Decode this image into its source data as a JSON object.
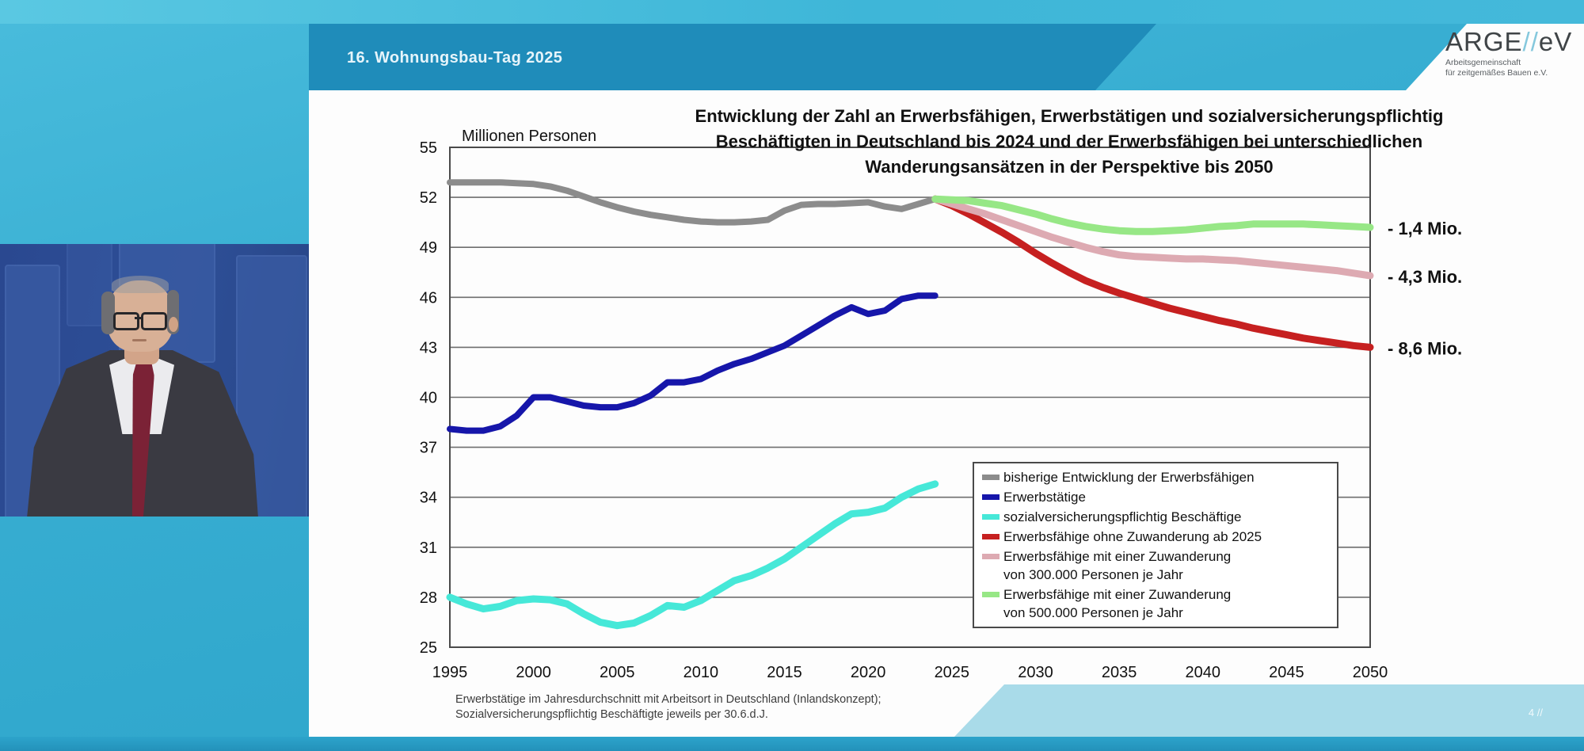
{
  "stream": {
    "page_number": "4 //"
  },
  "header": {
    "event_title": "16. Wohnungsbau-Tag 2025"
  },
  "logo": {
    "brand_left": "ARGE",
    "brand_slashes": "//",
    "brand_right": "eV",
    "subline1": "Arbeitsgemeinschaft",
    "subline2": "für zeitgemäßes Bauen e.V."
  },
  "chart_data": {
    "type": "line",
    "title_lines": [
      "Entwicklung der Zahl an Erwerbsfähigen, Erwerbstätigen und sozialversicherungspflichtig",
      "Beschäftigten in Deutschland bis 2024 und der Erwerbsfähigen bei unterschiedlichen",
      "Wanderungsansätzen in der Perspektive bis 2050"
    ],
    "unit_label": "Millionen Personen",
    "xlabel": "",
    "ylabel": "Millionen Personen",
    "x_axis": {
      "min": 1995,
      "max": 2050,
      "tick_step": 5
    },
    "y_axis": {
      "min": 25,
      "max": 55,
      "tick_step": 3
    },
    "grid": true,
    "legend_position": "inside-bottom-right",
    "series": [
      {
        "name": "bisherige Entwicklung der Erwerbsfähigen",
        "label_lines": [
          "bisherige Entwicklung der Erwerbsfähigen"
        ],
        "color": "#8c8c8c",
        "width": 8,
        "start_year": 1995,
        "values": [
          52.9,
          52.9,
          52.9,
          52.9,
          52.85,
          52.8,
          52.65,
          52.4,
          52.05,
          51.7,
          51.4,
          51.15,
          50.95,
          50.8,
          50.65,
          50.55,
          50.5,
          50.5,
          50.55,
          50.65,
          51.2,
          51.55,
          51.6,
          51.6,
          51.65,
          51.7,
          51.45,
          51.3,
          51.6,
          51.9
        ]
      },
      {
        "name": "Erwerbstätige",
        "label_lines": [
          "Erwerbstätige"
        ],
        "color": "#1616aa",
        "width": 8,
        "start_year": 1995,
        "values": [
          38.1,
          38.0,
          38.0,
          38.25,
          38.9,
          40.0,
          40.0,
          39.75,
          39.5,
          39.4,
          39.4,
          39.65,
          40.1,
          40.9,
          40.9,
          41.1,
          41.6,
          42.0,
          42.3,
          42.7,
          43.1,
          43.7,
          44.3,
          44.9,
          45.4,
          45.0,
          45.2,
          45.9,
          46.1,
          46.1
        ]
      },
      {
        "name": "sozialversicherungspflichtig Beschäftige",
        "label_lines": [
          "sozialversicherungspflichtig Beschäftige"
        ],
        "color": "#46e8d8",
        "width": 9,
        "start_year": 1995,
        "values": [
          28.0,
          27.6,
          27.3,
          27.45,
          27.8,
          27.9,
          27.85,
          27.6,
          27.0,
          26.5,
          26.3,
          26.45,
          26.9,
          27.5,
          27.4,
          27.8,
          28.4,
          29.0,
          29.3,
          29.75,
          30.3,
          31.0,
          31.7,
          32.4,
          33.0,
          33.1,
          33.35,
          34.0,
          34.5,
          34.8
        ]
      },
      {
        "name": "Erwerbsfähige ohne Zuwanderung ab 2025",
        "label_lines": [
          "Erwerbsfähige ohne Zuwanderung ab 2025"
        ],
        "color": "#c62020",
        "width": 9,
        "start_year": 2024,
        "values": [
          51.9,
          51.5,
          51.0,
          50.45,
          49.9,
          49.3,
          48.65,
          48.05,
          47.5,
          47.0,
          46.6,
          46.25,
          45.95,
          45.65,
          45.35,
          45.1,
          44.85,
          44.6,
          44.4,
          44.15,
          43.95,
          43.75,
          43.55,
          43.4,
          43.25,
          43.1,
          43.0
        ]
      },
      {
        "name": "Erwerbsfähige mit einer Zuwanderung von 300.000 Personen je Jahr",
        "label_lines": [
          "Erwerbsfähige mit einer Zuwanderung",
          "von 300.000 Personen je Jahr"
        ],
        "color": "#ddaab2",
        "width": 9,
        "start_year": 2024,
        "values": [
          51.9,
          51.6,
          51.3,
          51.0,
          50.65,
          50.3,
          49.95,
          49.6,
          49.3,
          49.0,
          48.75,
          48.55,
          48.45,
          48.4,
          48.35,
          48.3,
          48.3,
          48.25,
          48.2,
          48.1,
          48.0,
          47.9,
          47.8,
          47.7,
          47.6,
          47.45,
          47.3
        ]
      },
      {
        "name": "Erwerbsfähige mit einer Zuwanderung von 500.000 Personen je Jahr",
        "label_lines": [
          "Erwerbsfähige mit einer Zuwanderung",
          "von 500.000 Personen je Jahr"
        ],
        "color": "#97e786",
        "width": 9,
        "start_year": 2024,
        "values": [
          51.9,
          51.85,
          51.8,
          51.65,
          51.5,
          51.25,
          51.0,
          50.7,
          50.45,
          50.25,
          50.1,
          50.0,
          49.95,
          49.95,
          50.0,
          50.05,
          50.15,
          50.25,
          50.3,
          50.4,
          50.4,
          50.4,
          50.4,
          50.35,
          50.3,
          50.25,
          50.2
        ]
      }
    ],
    "annotations": [
      {
        "label": "- 1,4 Mio.",
        "value": 50.2
      },
      {
        "label": "- 4,3 Mio.",
        "value": 47.3
      },
      {
        "label": "- 8,6 Mio.",
        "value": 43.0
      }
    ],
    "footnote_lines": [
      "Erwerbstätige im Jahresdurchschnitt mit Arbeitsort in Deutschland (Inlandskonzept);",
      "Sozialversicherungspflichtig Beschäftigte jeweils per 30.6.d.J."
    ]
  }
}
